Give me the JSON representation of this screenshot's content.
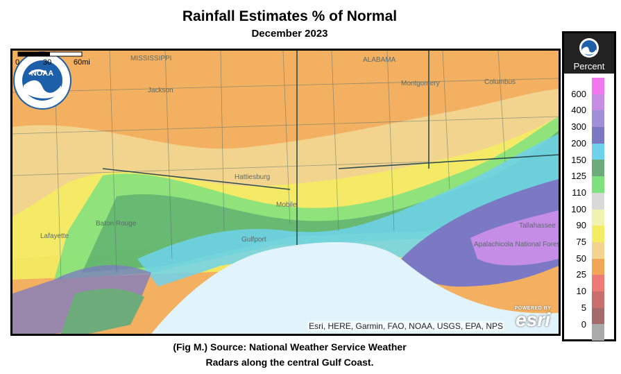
{
  "title": "Rainfall Estimates % of Normal",
  "subtitle": "December 2023",
  "map": {
    "attribution": "Esri, HERE, Garmin, FAO, NOAA, USGS, EPA, NPS",
    "esri_powered": "POWERED BY",
    "esri_brand": "esri",
    "scale": {
      "zero": "0",
      "mid": "30",
      "end": "60mi"
    },
    "state_labels": [
      "MISSISSIPPI",
      "ALABAMA"
    ],
    "city_labels": [
      "Jackson",
      "Montgomery",
      "Columbus",
      "Hattiesburg",
      "Mobile",
      "Baton Rouge",
      "Lafayette",
      "Gulfport",
      "Tallahassee",
      "Apalachicola National Forest"
    ]
  },
  "caption": {
    "line1": "(Fig M.) Source: National Weather Service Weather",
    "line2": "Radars along the central Gulf Coast."
  },
  "legend": {
    "title": "Percent",
    "ticks": [
      "600",
      "400",
      "300",
      "200",
      "150",
      "125",
      "110",
      "100",
      "90",
      "75",
      "50",
      "25",
      "10",
      "5",
      "0"
    ],
    "colors": [
      "#f077ef",
      "#c58de6",
      "#9f8fd8",
      "#7b79c4",
      "#6fd2ec",
      "#6eab7a",
      "#7ee27e",
      "#d9d9d9",
      "#f0f2b0",
      "#f4ec62",
      "#f3d48e",
      "#f0a655",
      "#ee7a75",
      "#c86f6b",
      "#a56a6a",
      "#aaaaaa"
    ]
  }
}
